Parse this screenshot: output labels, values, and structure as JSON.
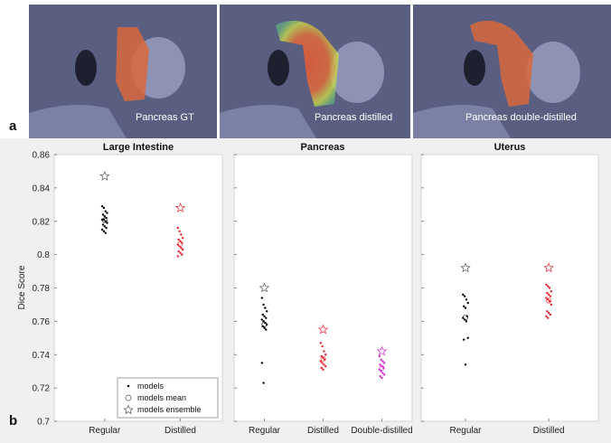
{
  "panel_a": {
    "label": "a",
    "images": [
      {
        "caption": "Pancreas GT"
      },
      {
        "caption": "Pancreas distilled"
      },
      {
        "caption": "Pancreas double-distilled"
      }
    ]
  },
  "panel_b": {
    "label": "b"
  },
  "colors": {
    "regular": "#000000",
    "distilled": "#e8202a",
    "double_distilled": "#d42ad4",
    "ensemble_regular": "#555555",
    "ensemble_distilled": "#e8202a",
    "ensemble_double": "#d42ad4",
    "overlay_gt": "#e0603a",
    "image_bg": "#5a5f80"
  },
  "chart_data": [
    {
      "type": "scatter",
      "title": "Large Intestine",
      "ylabel": "Dice Score",
      "ylim": [
        0.7,
        0.86
      ],
      "yticks": [
        "0.7",
        "0.72",
        "0.74",
        "0.76",
        "0.78",
        "0.8",
        "0.82",
        "0.84",
        "0.86"
      ],
      "categories": [
        "Regular",
        "Distilled"
      ],
      "series": [
        {
          "category": "Regular",
          "models": [
            0.829,
            0.828,
            0.826,
            0.825,
            0.824,
            0.823,
            0.822,
            0.821,
            0.821,
            0.82,
            0.819,
            0.818,
            0.817,
            0.816,
            0.815,
            0.814,
            0.813
          ],
          "ensemble": 0.847
        },
        {
          "category": "Distilled",
          "models": [
            0.816,
            0.814,
            0.812,
            0.81,
            0.809,
            0.808,
            0.807,
            0.806,
            0.805,
            0.804,
            0.803,
            0.802,
            0.801,
            0.8,
            0.799
          ],
          "ensemble": 0.828
        }
      ],
      "legend": {
        "position": "bottom-right",
        "entries": [
          "models",
          "models mean",
          "models ensemble"
        ]
      }
    },
    {
      "type": "scatter",
      "title": "Pancreas",
      "ylim": [
        0.7,
        0.86
      ],
      "categories": [
        "Regular",
        "Distilled",
        "Double-distilled"
      ],
      "series": [
        {
          "category": "Regular",
          "models": [
            0.774,
            0.77,
            0.768,
            0.766,
            0.764,
            0.763,
            0.762,
            0.761,
            0.76,
            0.759,
            0.758,
            0.757,
            0.756,
            0.755,
            0.735,
            0.723
          ],
          "ensemble": 0.78
        },
        {
          "category": "Distilled",
          "models": [
            0.747,
            0.745,
            0.742,
            0.74,
            0.739,
            0.738,
            0.737,
            0.736,
            0.735,
            0.734,
            0.733,
            0.732,
            0.731
          ],
          "ensemble": 0.755
        },
        {
          "category": "Double-distilled",
          "models": [
            0.739,
            0.737,
            0.736,
            0.735,
            0.734,
            0.733,
            0.732,
            0.731,
            0.73,
            0.729,
            0.728,
            0.727,
            0.726
          ],
          "ensemble": 0.742
        }
      ]
    },
    {
      "type": "scatter",
      "title": "Uterus",
      "ylim": [
        0.7,
        0.86
      ],
      "categories": [
        "Regular",
        "Distilled"
      ],
      "series": [
        {
          "category": "Regular",
          "models": [
            0.776,
            0.775,
            0.773,
            0.771,
            0.769,
            0.768,
            0.763,
            0.762,
            0.761,
            0.76,
            0.75,
            0.749,
            0.734
          ],
          "ensemble": 0.792
        },
        {
          "category": "Distilled",
          "models": [
            0.782,
            0.781,
            0.78,
            0.778,
            0.777,
            0.776,
            0.775,
            0.774,
            0.773,
            0.772,
            0.77,
            0.766,
            0.765,
            0.764,
            0.763,
            0.762
          ],
          "ensemble": 0.792
        }
      ]
    }
  ]
}
